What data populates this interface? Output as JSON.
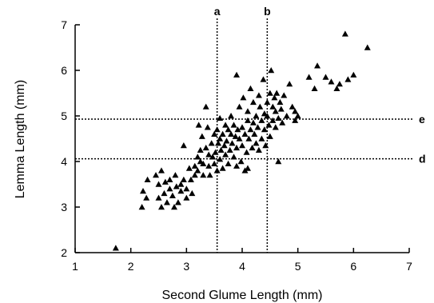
{
  "chart_data": {
    "type": "scatter",
    "title": "",
    "xlabel": "Second Glume Length (mm)",
    "ylabel": "Lemma Length (mm)",
    "xlim": [
      1,
      7
    ],
    "ylim": [
      2,
      7
    ],
    "xticks": [
      1,
      2,
      3,
      4,
      5,
      6,
      7
    ],
    "yticks": [
      2,
      3,
      4,
      5,
      6,
      7
    ],
    "grid": false,
    "marker": "triangle",
    "marker_color": "#000000",
    "reference_lines": {
      "vertical": [
        {
          "label": "a",
          "x": 3.55
        },
        {
          "label": "b",
          "x": 4.45
        }
      ],
      "horizontal": [
        {
          "label": "e",
          "y": 4.93
        },
        {
          "label": "d",
          "y": 4.06
        }
      ]
    },
    "series": [
      {
        "points": [
          [
            1.73,
            2.1
          ],
          [
            2.2,
            3.0
          ],
          [
            2.22,
            3.35
          ],
          [
            2.28,
            3.2
          ],
          [
            2.3,
            3.6
          ],
          [
            2.45,
            3.7
          ],
          [
            2.5,
            3.5
          ],
          [
            2.5,
            3.2
          ],
          [
            2.55,
            3.0
          ],
          [
            2.55,
            3.8
          ],
          [
            2.6,
            3.3
          ],
          [
            2.62,
            3.55
          ],
          [
            2.65,
            3.1
          ],
          [
            2.7,
            3.6
          ],
          [
            2.7,
            3.4
          ],
          [
            2.75,
            3.25
          ],
          [
            2.78,
            3.0
          ],
          [
            2.8,
            3.7
          ],
          [
            2.82,
            3.45
          ],
          [
            2.85,
            3.1
          ],
          [
            2.9,
            3.5
          ],
          [
            2.9,
            3.35
          ],
          [
            2.95,
            3.6
          ],
          [
            2.95,
            4.35
          ],
          [
            3.0,
            3.2
          ],
          [
            3.0,
            3.4
          ],
          [
            3.05,
            3.85
          ],
          [
            3.08,
            3.6
          ],
          [
            3.1,
            3.3
          ],
          [
            3.15,
            3.7
          ],
          [
            3.15,
            3.9
          ],
          [
            3.2,
            4.1
          ],
          [
            3.2,
            3.8
          ],
          [
            3.22,
            4.8
          ],
          [
            3.25,
            4.0
          ],
          [
            3.25,
            4.25
          ],
          [
            3.28,
            4.55
          ],
          [
            3.3,
            3.95
          ],
          [
            3.3,
            3.7
          ],
          [
            3.35,
            5.2
          ],
          [
            3.35,
            4.3
          ],
          [
            3.38,
            4.75
          ],
          [
            3.4,
            4.15
          ],
          [
            3.4,
            3.9
          ],
          [
            3.42,
            3.7
          ],
          [
            3.45,
            4.4
          ],
          [
            3.47,
            4.1
          ],
          [
            3.5,
            3.95
          ],
          [
            3.5,
            4.6
          ],
          [
            3.52,
            4.2
          ],
          [
            3.55,
            4.7
          ],
          [
            3.55,
            3.8
          ],
          [
            3.57,
            4.4
          ],
          [
            3.6,
            4.5
          ],
          [
            3.6,
            4.95
          ],
          [
            3.6,
            4.05
          ],
          [
            3.62,
            4.25
          ],
          [
            3.65,
            3.85
          ],
          [
            3.65,
            4.6
          ],
          [
            3.68,
            4.35
          ],
          [
            3.7,
            4.8
          ],
          [
            3.7,
            4.15
          ],
          [
            3.72,
            4.45
          ],
          [
            3.75,
            3.95
          ],
          [
            3.75,
            4.7
          ],
          [
            3.78,
            4.25
          ],
          [
            3.8,
            4.6
          ],
          [
            3.8,
            5.0
          ],
          [
            3.82,
            4.4
          ],
          [
            3.85,
            4.1
          ],
          [
            3.85,
            4.8
          ],
          [
            3.88,
            4.55
          ],
          [
            3.9,
            3.9
          ],
          [
            3.9,
            4.3
          ],
          [
            3.92,
            4.7
          ],
          [
            3.95,
            5.2
          ],
          [
            3.95,
            4.5
          ],
          [
            3.98,
            4.0
          ],
          [
            4.0,
            4.75
          ],
          [
            4.0,
            4.35
          ],
          [
            4.02,
            5.4
          ],
          [
            4.05,
            4.6
          ],
          [
            4.05,
            3.8
          ],
          [
            4.08,
            4.2
          ],
          [
            4.1,
            4.9
          ],
          [
            4.1,
            5.1
          ],
          [
            4.12,
            4.5
          ],
          [
            4.15,
            4.7
          ],
          [
            4.15,
            5.6
          ],
          [
            4.18,
            4.3
          ],
          [
            4.2,
            4.85
          ],
          [
            4.2,
            5.3
          ],
          [
            4.22,
            4.6
          ],
          [
            4.25,
            4.4
          ],
          [
            4.25,
            5.0
          ],
          [
            4.28,
            4.75
          ],
          [
            4.3,
            5.45
          ],
          [
            4.3,
            4.25
          ],
          [
            4.32,
            5.2
          ],
          [
            4.35,
            4.9
          ],
          [
            4.35,
            4.5
          ],
          [
            4.38,
            5.8
          ],
          [
            4.4,
            4.7
          ],
          [
            4.4,
            5.05
          ],
          [
            4.42,
            4.35
          ],
          [
            4.45,
            5.0
          ],
          [
            4.45,
            5.3
          ],
          [
            4.48,
            4.8
          ],
          [
            4.5,
            5.5
          ],
          [
            4.5,
            4.55
          ],
          [
            4.52,
            6.0
          ],
          [
            4.55,
            5.2
          ],
          [
            4.55,
            4.9
          ],
          [
            4.58,
            5.4
          ],
          [
            4.6,
            4.75
          ],
          [
            4.6,
            5.1
          ],
          [
            4.62,
            5.5
          ],
          [
            4.65,
            4.0
          ],
          [
            4.65,
            4.95
          ],
          [
            4.68,
            5.3
          ],
          [
            4.7,
            5.15
          ],
          [
            4.72,
            4.85
          ],
          [
            4.75,
            5.45
          ],
          [
            4.8,
            5.0
          ],
          [
            4.85,
            5.7
          ],
          [
            4.9,
            5.2
          ],
          [
            4.95,
            4.9
          ],
          [
            4.95,
            5.1
          ],
          [
            5.0,
            5.0
          ],
          [
            3.9,
            5.9
          ],
          [
            4.1,
            3.85
          ],
          [
            5.2,
            5.85
          ],
          [
            5.3,
            5.6
          ],
          [
            5.35,
            6.1
          ],
          [
            5.5,
            5.85
          ],
          [
            5.6,
            5.75
          ],
          [
            5.7,
            5.6
          ],
          [
            5.75,
            5.7
          ],
          [
            5.85,
            6.8
          ],
          [
            5.9,
            5.8
          ],
          [
            6.0,
            5.9
          ],
          [
            6.25,
            6.5
          ]
        ]
      }
    ]
  }
}
